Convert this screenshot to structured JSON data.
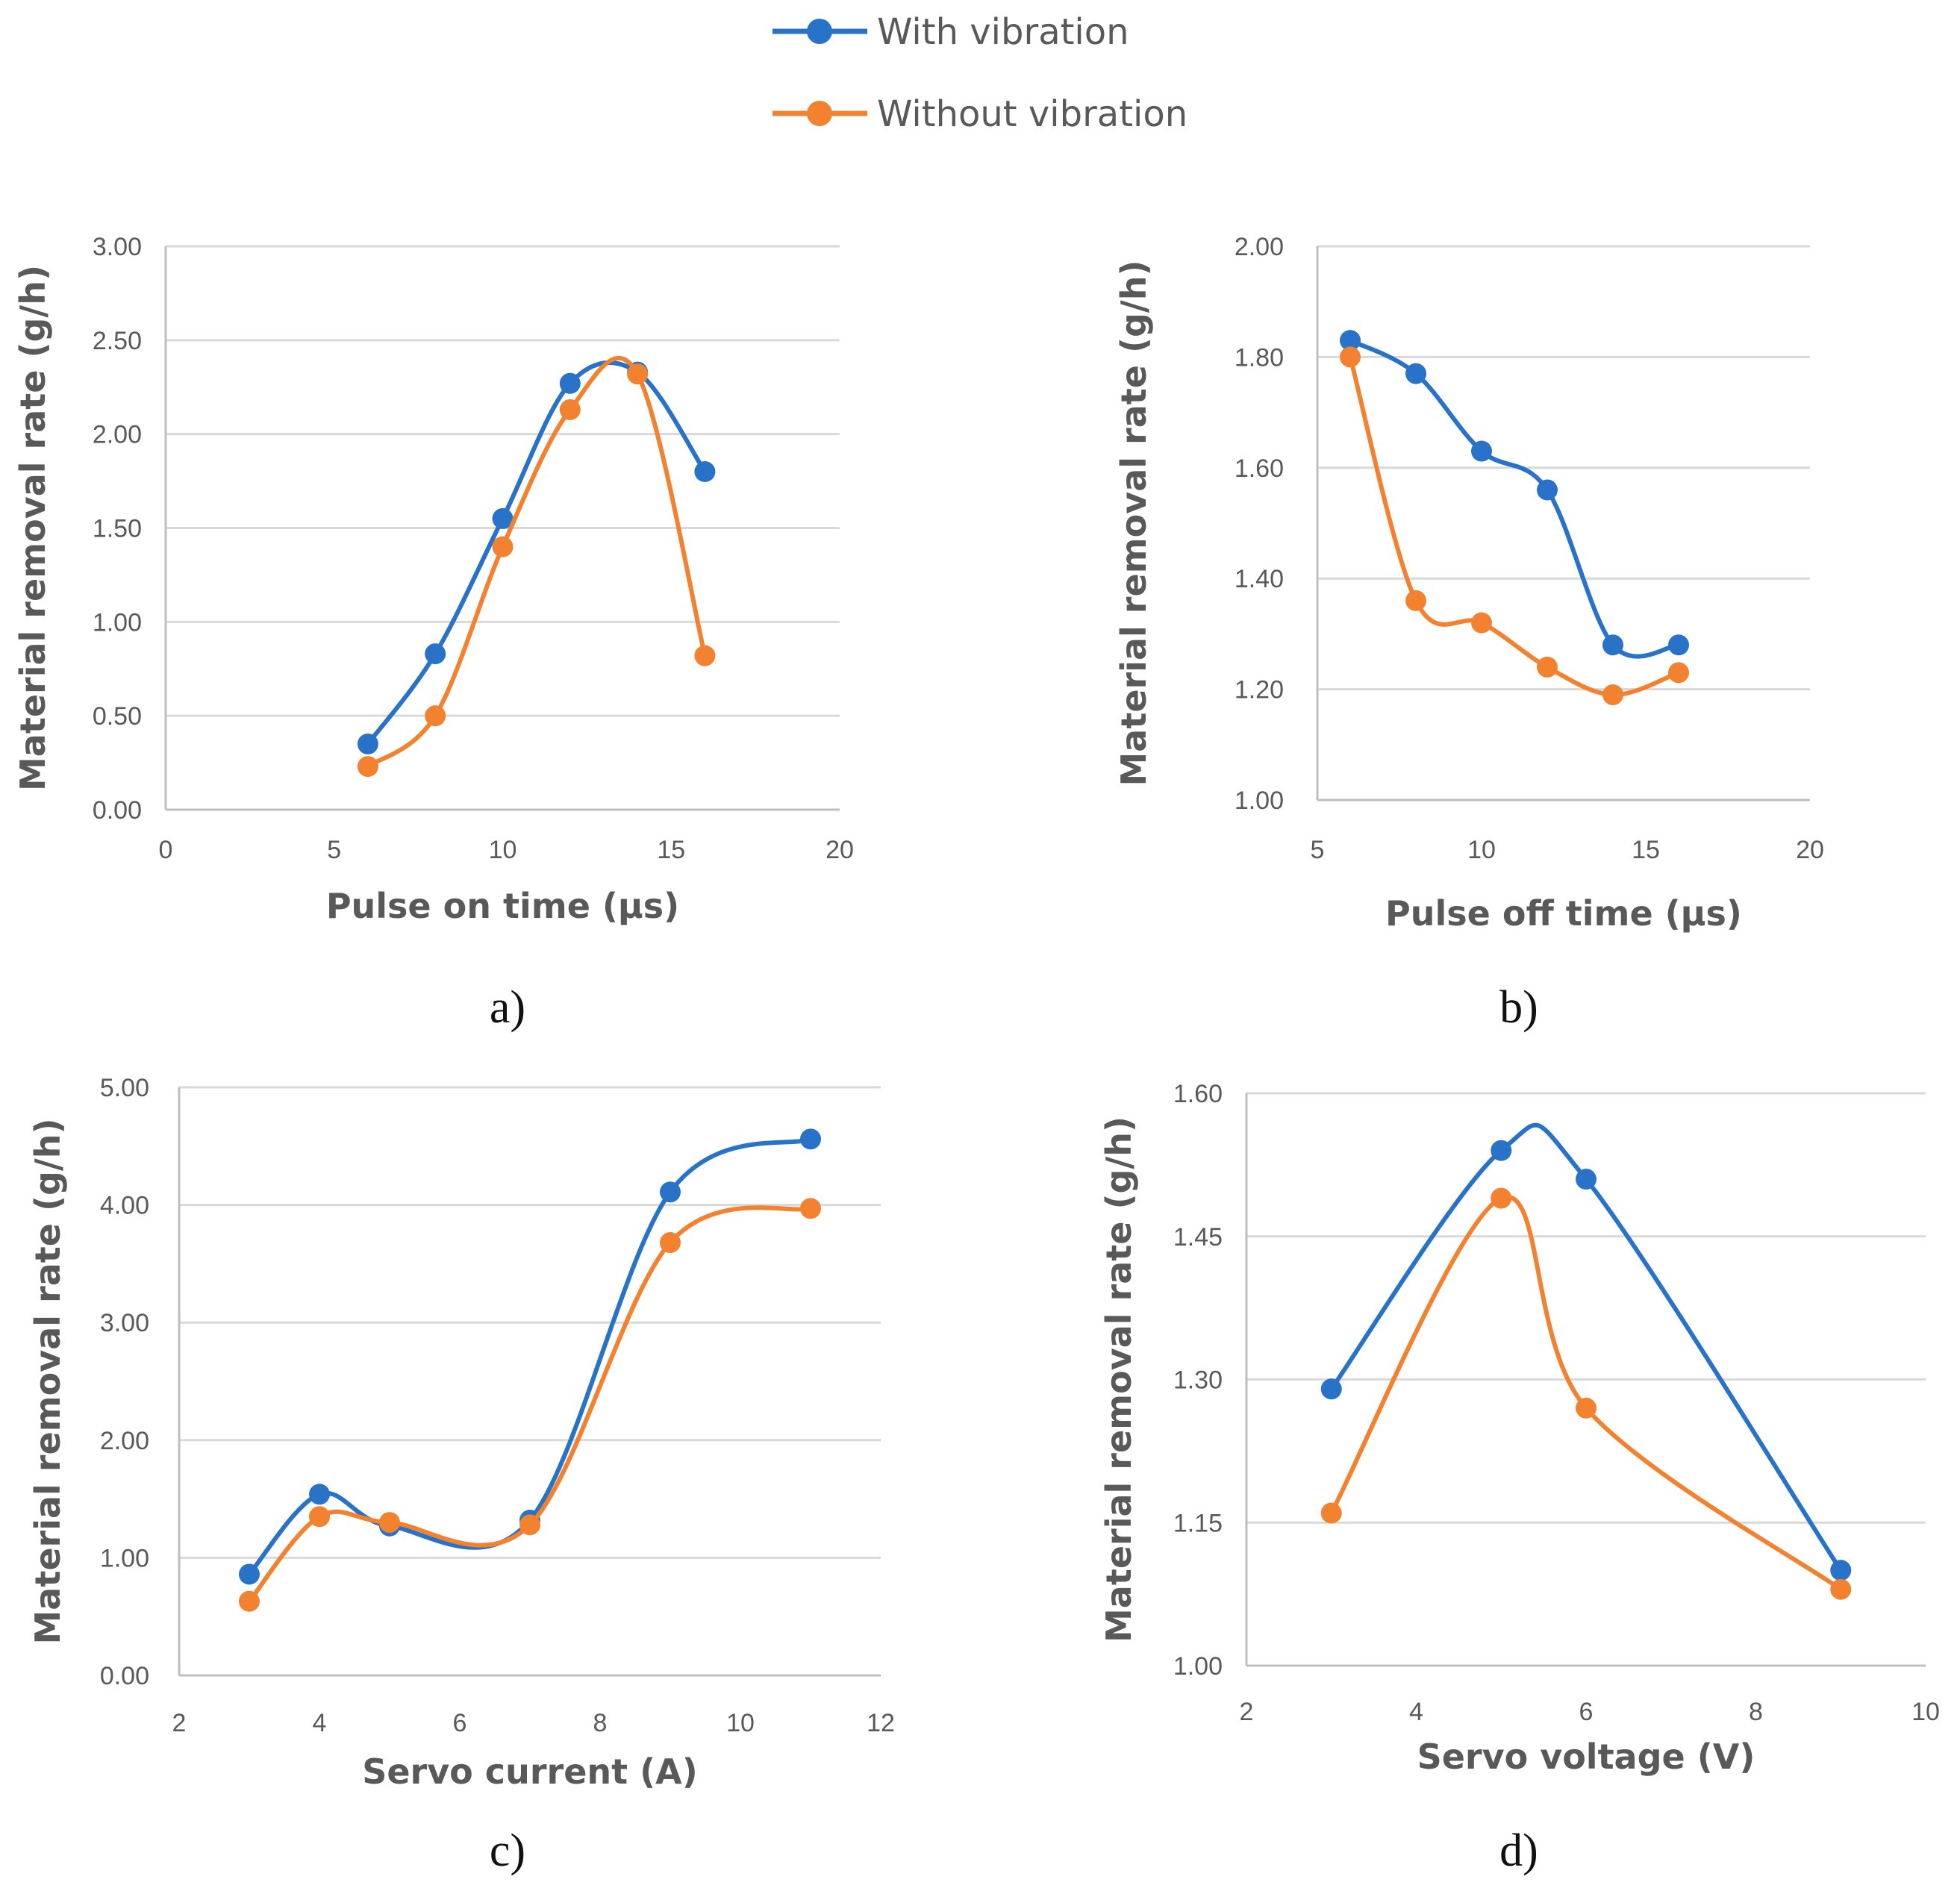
{
  "legend": {
    "entries": [
      {
        "name": "With vibration",
        "color": "#2872C8"
      },
      {
        "name": "Without vibration",
        "color": "#F28230"
      }
    ]
  },
  "chart_data": [
    {
      "type": "line",
      "panel_label": "a)",
      "title": "",
      "xlabel": "Pulse on time (μs)",
      "ylabel": "Material removal rate (g/h)",
      "xlim": [
        0,
        20
      ],
      "ylim": [
        0,
        3
      ],
      "xticks": [
        0,
        5,
        10,
        15,
        20
      ],
      "xtick_labels": [
        "0",
        "5",
        "10",
        "15",
        "20"
      ],
      "yticks": [
        0,
        0.5,
        1,
        1.5,
        2,
        2.5,
        3
      ],
      "ytick_labels": [
        "0.00",
        "0.50",
        "1.00",
        "1.50",
        "2.00",
        "2.50",
        "3.00"
      ],
      "grid": "horizontal",
      "series": [
        {
          "name": "With vibration",
          "x": [
            6,
            8,
            10,
            12,
            14,
            16
          ],
          "y": [
            0.35,
            0.83,
            1.55,
            2.27,
            2.33,
            1.8
          ]
        },
        {
          "name": "Without vibration",
          "x": [
            6,
            8,
            10,
            12,
            14,
            16
          ],
          "y": [
            0.23,
            0.5,
            1.4,
            2.13,
            2.32,
            0.82
          ]
        }
      ]
    },
    {
      "type": "line",
      "panel_label": "b)",
      "title": "",
      "xlabel": "Pulse off time (μs)",
      "ylabel": "Material removal rate (g/h)",
      "xlim": [
        5,
        20
      ],
      "ylim": [
        1,
        2
      ],
      "xticks": [
        5,
        10,
        15,
        20
      ],
      "xtick_labels": [
        "5",
        "10",
        "15",
        "20"
      ],
      "yticks": [
        1,
        1.2,
        1.4,
        1.6,
        1.8,
        2
      ],
      "ytick_labels": [
        "1.00",
        "1.20",
        "1.40",
        "1.60",
        "1.80",
        "2.00"
      ],
      "grid": "horizontal",
      "series": [
        {
          "name": "With vibration",
          "x": [
            6,
            8,
            10,
            12,
            14,
            16
          ],
          "y": [
            1.83,
            1.77,
            1.63,
            1.56,
            1.28,
            1.28
          ]
        },
        {
          "name": "Without vibration",
          "x": [
            6,
            8,
            10,
            12,
            14,
            16
          ],
          "y": [
            1.8,
            1.36,
            1.32,
            1.24,
            1.19,
            1.23
          ]
        }
      ]
    },
    {
      "type": "line",
      "panel_label": "c)",
      "title": "",
      "xlabel": "Servo current (A)",
      "ylabel": "Material removal rate (g/h)",
      "xlim": [
        2,
        12
      ],
      "ylim": [
        0,
        5
      ],
      "xticks": [
        2,
        4,
        6,
        8,
        10,
        12
      ],
      "xtick_labels": [
        "2",
        "4",
        "6",
        "8",
        "10",
        "12"
      ],
      "yticks": [
        0,
        1,
        2,
        3,
        4,
        5
      ],
      "ytick_labels": [
        "0.00",
        "1.00",
        "2.00",
        "3.00",
        "4.00",
        "5.00"
      ],
      "grid": "horizontal",
      "series": [
        {
          "name": "With vibration",
          "x": [
            3,
            4,
            5,
            7,
            9,
            11
          ],
          "y": [
            0.86,
            1.54,
            1.27,
            1.32,
            4.11,
            4.56
          ]
        },
        {
          "name": "Without vibration",
          "x": [
            3,
            4,
            5,
            7,
            9,
            11
          ],
          "y": [
            0.63,
            1.35,
            1.3,
            1.28,
            3.68,
            3.97
          ]
        }
      ]
    },
    {
      "type": "line",
      "panel_label": "d)",
      "title": "",
      "xlabel": "Servo voltage (V)",
      "ylabel": "Material removal rate (g/h)",
      "xlim": [
        2,
        10
      ],
      "ylim": [
        1,
        1.6
      ],
      "xticks": [
        2,
        4,
        6,
        8,
        10
      ],
      "xtick_labels": [
        "2",
        "4",
        "6",
        "8",
        "10"
      ],
      "yticks": [
        1,
        1.15,
        1.3,
        1.45,
        1.6
      ],
      "ytick_labels": [
        "1.00",
        "1.15",
        "1.30",
        "1.45",
        "1.60"
      ],
      "grid": "horizontal",
      "series": [
        {
          "name": "With vibration",
          "x": [
            3,
            5,
            6,
            9
          ],
          "y": [
            1.29,
            1.54,
            1.51,
            1.1
          ]
        },
        {
          "name": "Without vibration",
          "x": [
            3,
            5,
            6,
            9
          ],
          "y": [
            1.16,
            1.49,
            1.27,
            1.08
          ]
        }
      ]
    }
  ]
}
